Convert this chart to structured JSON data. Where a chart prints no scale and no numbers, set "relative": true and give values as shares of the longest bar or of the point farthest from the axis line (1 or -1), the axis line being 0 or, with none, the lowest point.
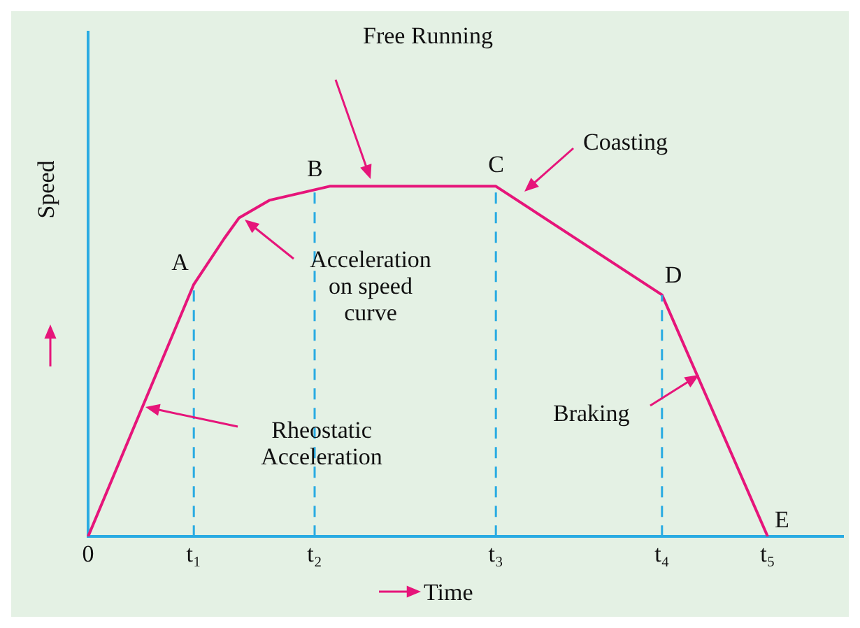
{
  "chart_data": {
    "type": "line",
    "relative": true,
    "xlabel": "Time",
    "ylabel": "Speed",
    "categories": [
      "0",
      null,
      null,
      null,
      null,
      null,
      null,
      "t₁",
      null,
      null,
      null,
      null,
      null,
      null,
      null,
      "t₂",
      null,
      null,
      null,
      null,
      null,
      null,
      null,
      null,
      null,
      null,
      null,
      "t₃",
      null,
      null,
      null,
      null,
      null,
      null,
      null,
      null,
      null,
      null,
      "t₄",
      null,
      null,
      null,
      null,
      null,
      null,
      "t₅",
      null,
      null,
      null,
      null,
      null
    ],
    "series": [
      {
        "color": "#e6157a",
        "values": [
          0,
          null,
          null,
          null,
          null,
          null,
          null,
          0.72,
          null,
          0.85,
          0.91,
          null,
          0.96,
          null,
          null,
          0.99,
          1,
          null,
          null,
          null,
          null,
          null,
          null,
          null,
          null,
          null,
          null,
          1,
          null,
          null,
          null,
          null,
          null,
          null,
          null,
          null,
          null,
          null,
          0.69,
          null,
          null,
          null,
          null,
          null,
          null,
          0,
          null,
          null,
          null,
          null,
          null
        ]
      }
    ],
    "ref_lines": [
      {
        "axis": "x",
        "value": "t₁",
        "color": "#29abe2",
        "line_style": "dashed"
      },
      {
        "axis": "x",
        "value": "t₂",
        "color": "#29abe2",
        "line_style": "dashed"
      },
      {
        "axis": "x",
        "value": "t₃",
        "color": "#29abe2",
        "line_style": "dashed"
      },
      {
        "axis": "x",
        "value": "t₄",
        "color": "#29abe2",
        "line_style": "dashed"
      }
    ],
    "annotations": [
      "Free Running",
      "Coasting",
      "Acceleration on speed curve",
      "Rheostatic Acceleration",
      "Braking",
      {
        "text": "A",
        "x": "t₁",
        "y": 0.72
      },
      {
        "text": "B",
        "x": "t₂",
        "y": 0.99
      },
      {
        "text": "C",
        "x": "t₃",
        "y": 1
      },
      {
        "text": "D",
        "x": "t₄",
        "y": 0.69
      },
      {
        "text": "E",
        "x": "t₅",
        "y": 0
      }
    ],
    "grid": false,
    "legend": false,
    "marker": "none",
    "line_style": "solid"
  }
}
